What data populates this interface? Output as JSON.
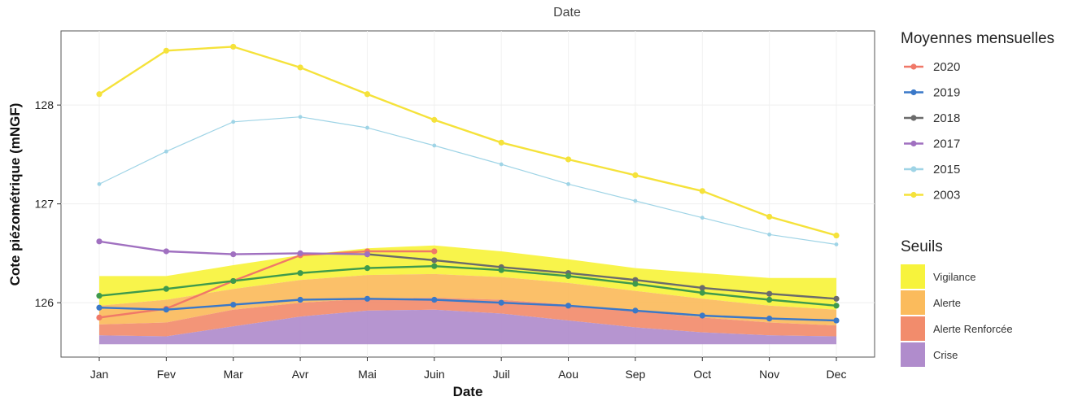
{
  "chart_data": {
    "type": "line",
    "title": "Date",
    "xlabel": "Date",
    "ylabel": "Cote piézométrique (mNGF)",
    "categories": [
      "Jan",
      "Fev",
      "Mar",
      "Avr",
      "Mai",
      "Juin",
      "Juil",
      "Aou",
      "Sep",
      "Oct",
      "Nov",
      "Dec"
    ],
    "ylim": [
      125.45,
      128.75
    ],
    "yticks": [
      126,
      127,
      128
    ],
    "grid": true,
    "legend_position": "right",
    "legend_title": "Moyennes mensuelles",
    "series": [
      {
        "name": "2020",
        "color": "#f07868",
        "values": [
          125.85,
          125.94,
          126.22,
          126.48,
          126.52,
          126.52,
          null,
          null,
          null,
          null,
          null,
          null
        ]
      },
      {
        "name": "2019",
        "color": "#3a78c8",
        "values": [
          125.95,
          125.93,
          125.98,
          126.03,
          126.04,
          126.03,
          126.0,
          125.97,
          125.92,
          125.87,
          125.84,
          125.82
        ]
      },
      {
        "name": "2018",
        "color": "#6b6b6b",
        "values": [
          null,
          null,
          null,
          null,
          126.49,
          126.43,
          126.36,
          126.3,
          126.23,
          126.15,
          126.09,
          126.04
        ]
      },
      {
        "name": "2017",
        "color": "#a070c0",
        "values": [
          126.62,
          126.52,
          126.49,
          126.5,
          126.49,
          null,
          null,
          null,
          null,
          null,
          null,
          null
        ]
      },
      {
        "name": "2015",
        "color": "#9fd4e6",
        "values": [
          127.2,
          127.53,
          127.83,
          127.88,
          127.77,
          127.59,
          127.4,
          127.2,
          127.03,
          126.86,
          126.69,
          126.59
        ]
      },
      {
        "name": "2003",
        "color": "#f5e23a",
        "values": [
          128.11,
          128.55,
          128.59,
          128.38,
          128.11,
          127.85,
          127.62,
          127.45,
          127.29,
          127.13,
          126.87,
          126.68
        ]
      },
      {
        "name": "",
        "color": "#3e9a4c",
        "values": [
          126.07,
          126.14,
          126.22,
          126.3,
          126.35,
          126.37,
          126.33,
          126.27,
          126.19,
          126.1,
          126.03,
          125.97
        ]
      }
    ],
    "thresholds_title": "Seuils",
    "thresholds": [
      {
        "name": "Vigilance",
        "color": "#f7f33c",
        "upper": [
          126.27,
          126.27,
          126.38,
          126.48,
          126.55,
          126.58,
          126.52,
          126.44,
          126.35,
          126.3,
          126.25,
          126.25
        ]
      },
      {
        "name": "Alerte",
        "color": "#fbbb5c",
        "upper": [
          125.97,
          126.03,
          126.14,
          126.23,
          126.28,
          126.29,
          126.26,
          126.2,
          126.12,
          126.04,
          125.97,
          125.93
        ]
      },
      {
        "name": "Alerte Renforcée",
        "color": "#f28c6c",
        "upper": [
          125.78,
          125.8,
          125.93,
          126.0,
          126.04,
          126.05,
          126.03,
          125.98,
          125.92,
          125.85,
          125.8,
          125.77
        ]
      },
      {
        "name": "Crise",
        "color": "#b08ccc",
        "upper": [
          125.67,
          125.66,
          125.76,
          125.86,
          125.92,
          125.93,
          125.89,
          125.82,
          125.75,
          125.7,
          125.67,
          125.66
        ]
      }
    ],
    "thresholds_floor": 125.58
  }
}
